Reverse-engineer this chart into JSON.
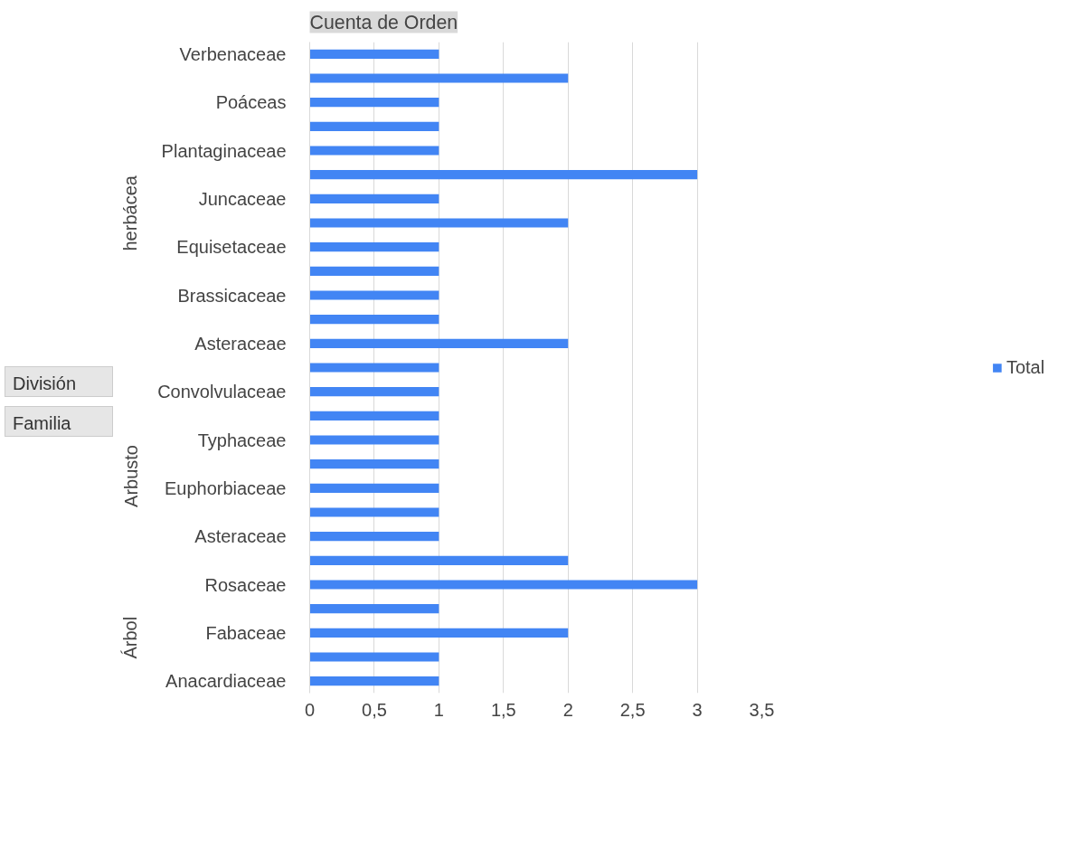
{
  "chart_data": {
    "type": "bar",
    "orientation": "horizontal",
    "title": "Cuenta de Orden",
    "categories": [
      "Verbenaceae",
      null,
      "Poáceas",
      null,
      "Plantaginaceae",
      null,
      "Juncaceae",
      null,
      "Equisetaceae",
      null,
      "Brassicaceae",
      null,
      "Asteraceae",
      null,
      "Convolvulaceae",
      null,
      "Typhaceae",
      null,
      "Euphorbiaceae",
      null,
      "Asteraceae",
      null,
      "Rosaceae",
      null,
      "Fabaceae",
      null,
      "Anacardiaceae"
    ],
    "series": [
      {
        "name": "Total",
        "color": "#4285f4",
        "values": [
          1,
          2,
          1,
          1,
          1,
          3,
          1,
          2,
          1,
          1,
          1,
          1,
          2,
          1,
          1,
          1,
          1,
          1,
          1,
          1,
          1,
          2,
          3,
          1,
          2,
          1,
          1
        ]
      }
    ],
    "xlim": [
      0,
      3.5
    ],
    "xticks": [
      0,
      {
        "value": 0.5,
        "label": "0,5"
      },
      1,
      {
        "value": 1.5,
        "label": "1,5"
      },
      2,
      {
        "value": 2.5,
        "label": "2,5"
      },
      3,
      {
        "value": 3.5,
        "label": "3,5"
      }
    ],
    "grid": "x",
    "legend": "right",
    "annotations": [
      "herbácea",
      "Arbusto",
      "Árbol",
      "División",
      "Familia"
    ]
  }
}
